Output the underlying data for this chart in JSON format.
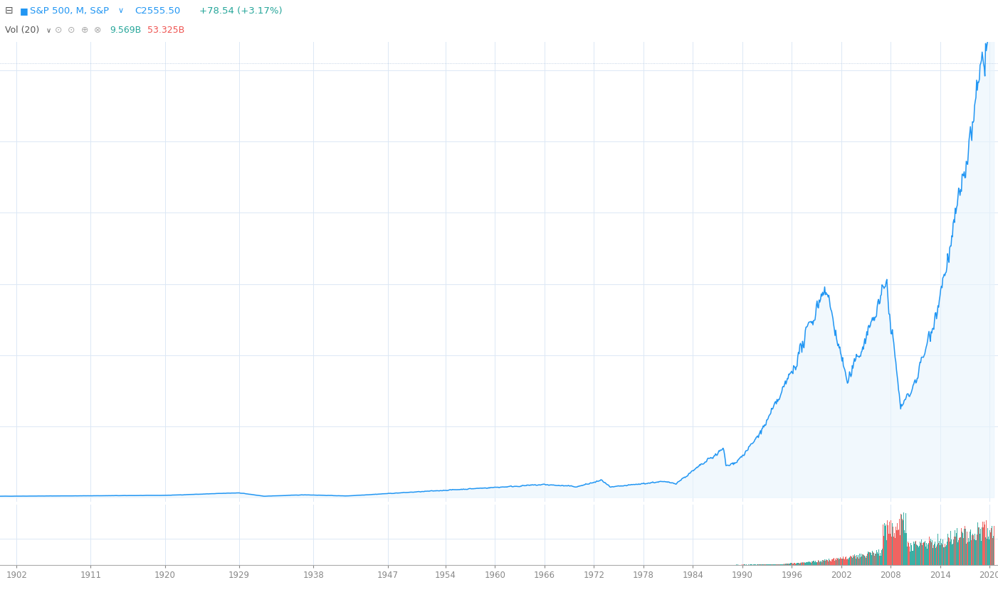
{
  "title_line1": "S&P 500, M, S&P",
  "title_price": "C2555.50",
  "title_change": "+78.54 (+3.17%)",
  "title_vol": "Vol (20)",
  "title_vol1": "9.569B",
  "title_vol2": "53.325B",
  "x_start": 1900,
  "x_end": 2021,
  "y_price_min": 0,
  "y_price_max": 3200,
  "background_color": "#ffffff",
  "plot_bg_color": "#ffffff",
  "line_color": "#2196f3",
  "fill_color": "#e8f4fd",
  "vol_color1": "#26a69a",
  "vol_color2": "#ef5350",
  "grid_color": "#dce8f5",
  "dotted_line_color": "#b0c4de",
  "x_ticks": [
    1902,
    1911,
    1920,
    1929,
    1938,
    1947,
    1954,
    1960,
    1966,
    1972,
    1978,
    1984,
    1990,
    1996,
    2002,
    2008,
    2014,
    2020
  ],
  "x_tick_labels": [
    "1902",
    "1911",
    "1920",
    "1929",
    "1938",
    "1947",
    "1954",
    "1960",
    "1966",
    "1972",
    "1978",
    "1984",
    "1990",
    "1996",
    "2002",
    "2008",
    "2014",
    "2020"
  ],
  "figsize": [
    14.02,
    8.4
  ],
  "dpi": 100
}
